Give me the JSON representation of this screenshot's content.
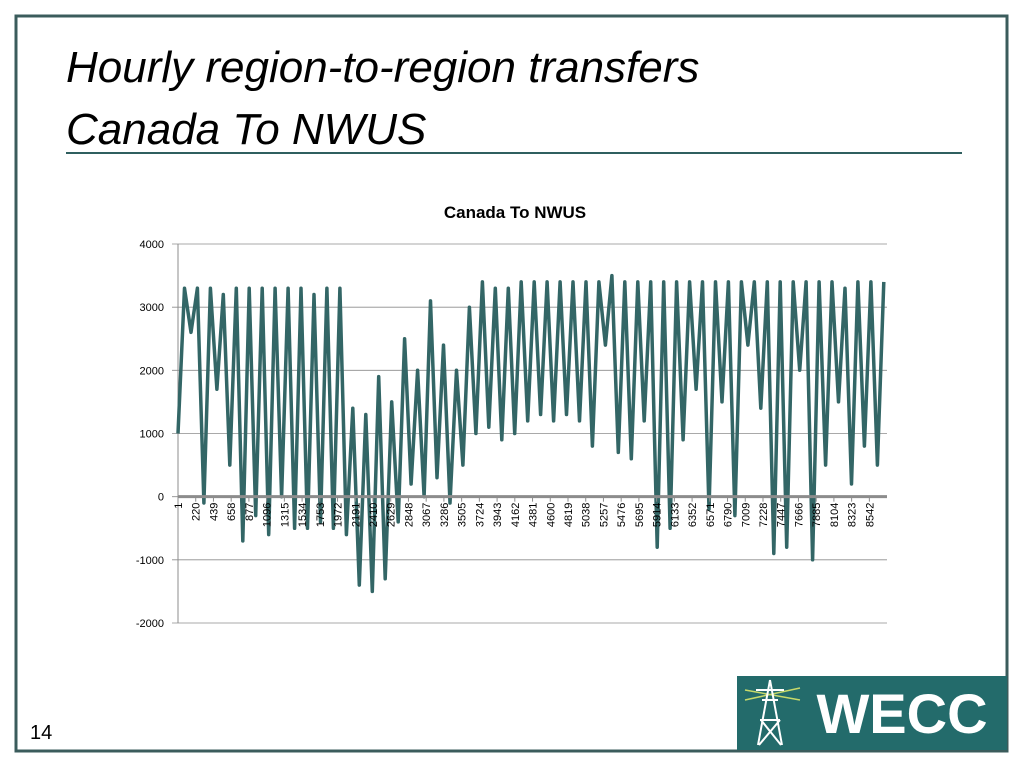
{
  "slide": {
    "title_line1": "Hourly region-to-region transfers",
    "title_line2": "Canada To NWUS",
    "page_number": "14",
    "logo_text": "WECC"
  },
  "chart_data": {
    "type": "line",
    "title": "Canada To NWUS",
    "x": [
      1,
      81,
      161,
      241,
      321,
      401,
      481,
      561,
      641,
      721,
      801,
      881,
      961,
      1041,
      1121,
      1201,
      1281,
      1361,
      1441,
      1521,
      1601,
      1681,
      1761,
      1841,
      1921,
      2001,
      2081,
      2161,
      2241,
      2321,
      2401,
      2481,
      2561,
      2641,
      2721,
      2801,
      2881,
      2961,
      3041,
      3121,
      3201,
      3281,
      3361,
      3441,
      3521,
      3601,
      3681,
      3761,
      3841,
      3921,
      4001,
      4081,
      4161,
      4241,
      4321,
      4401,
      4481,
      4561,
      4641,
      4721,
      4801,
      4881,
      4961,
      5041,
      5121,
      5201,
      5281,
      5361,
      5441,
      5521,
      5601,
      5681,
      5761,
      5841,
      5921,
      6001,
      6081,
      6161,
      6241,
      6321,
      6401,
      6481,
      6561,
      6641,
      6721,
      6801,
      6881,
      6961,
      7041,
      7121,
      7201,
      7281,
      7361,
      7441,
      7521,
      7601,
      7681,
      7761,
      7841,
      7921,
      8001,
      8081,
      8161,
      8241,
      8321,
      8401,
      8481,
      8561,
      8641,
      8721
    ],
    "series": [
      {
        "name": "Canada To NWUS",
        "color": "#336666",
        "values": [
          1000,
          3300,
          2600,
          3300,
          -100,
          3300,
          1700,
          3200,
          500,
          3300,
          -700,
          3300,
          -300,
          3300,
          -600,
          3300,
          0,
          3300,
          -500,
          3300,
          -500,
          3200,
          -400,
          3300,
          -500,
          3300,
          -600,
          1400,
          -1400,
          1300,
          -1500,
          1900,
          -1300,
          1500,
          -400,
          2500,
          200,
          2000,
          0,
          3100,
          300,
          2400,
          -100,
          2000,
          500,
          3000,
          1000,
          3400,
          1100,
          3300,
          900,
          3300,
          1000,
          3400,
          1200,
          3400,
          1300,
          3400,
          1200,
          3400,
          1300,
          3400,
          1200,
          3400,
          800,
          3400,
          2400,
          3500,
          700,
          3400,
          600,
          3400,
          1200,
          3400,
          -800,
          3400,
          -500,
          3400,
          900,
          3400,
          1700,
          3400,
          -200,
          3400,
          1500,
          3400,
          -300,
          3400,
          2400,
          3400,
          1400,
          3400,
          -900,
          3400,
          -800,
          3400,
          2000,
          3400,
          -1000,
          3400,
          500,
          3400,
          1500,
          3300,
          200,
          3400,
          800,
          3400,
          500,
          3400
        ]
      }
    ],
    "xlim": [
      1,
      8760
    ],
    "xticks": [
      1,
      220,
      439,
      658,
      877,
      1096,
      1315,
      1534,
      1753,
      1972,
      2191,
      2410,
      2629,
      2848,
      3067,
      3286,
      3505,
      3724,
      3943,
      4162,
      4381,
      4600,
      4819,
      5038,
      5257,
      5476,
      5695,
      5914,
      6133,
      6352,
      6571,
      6790,
      7009,
      7228,
      7447,
      7666,
      7885,
      8104,
      8323,
      8542
    ],
    "ylim": [
      -2000,
      4000
    ],
    "yticks": [
      -2000,
      -1000,
      0,
      1000,
      2000,
      3000,
      4000
    ],
    "grid": true
  }
}
